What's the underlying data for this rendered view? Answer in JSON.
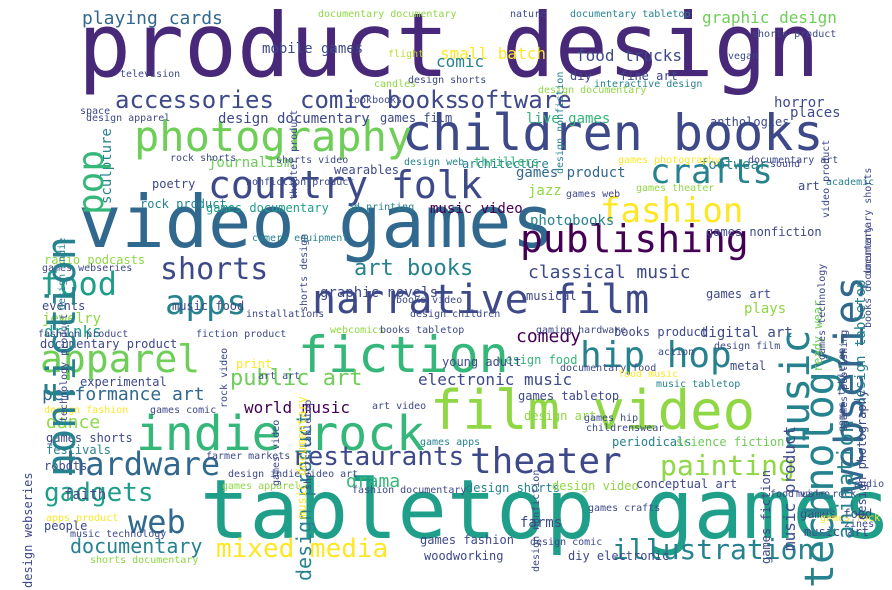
{
  "colors": {
    "background": "#ffffff",
    "palette": [
      "#440154",
      "#482878",
      "#3e4989",
      "#31688e",
      "#26828e",
      "#1f9e89",
      "#35b779",
      "#6ece58",
      "#b5de2b",
      "#fde725"
    ]
  },
  "words": [
    {
      "text": "product design",
      "c": "#482878"
    },
    {
      "text": "video games",
      "c": "#31688e"
    },
    {
      "text": "tabletop games",
      "c": "#1f9e89"
    },
    {
      "text": "film video",
      "c": "#8fd744"
    },
    {
      "text": "children books",
      "c": "#3e4989"
    },
    {
      "text": "narrative film",
      "c": "#3e4989"
    },
    {
      "text": "country folk",
      "c": "#3e4989"
    },
    {
      "text": "publishing",
      "c": "#440154"
    },
    {
      "text": "fiction",
      "c": "#35b779"
    },
    {
      "text": "indie rock",
      "c": "#35b779"
    },
    {
      "text": "photography",
      "c": "#6ece58"
    },
    {
      "text": "accessories",
      "c": "#3e4989"
    },
    {
      "text": "comic books",
      "c": "#3e4989"
    },
    {
      "text": "software",
      "c": "#3e4989"
    },
    {
      "text": "fashion",
      "c": "#fde725"
    },
    {
      "text": "crafts",
      "c": "#26828e"
    },
    {
      "text": "apps",
      "c": "#26828e"
    },
    {
      "text": "shorts",
      "c": "#3e4989"
    },
    {
      "text": "food",
      "c": "#1f9e89"
    },
    {
      "text": "apparel",
      "c": "#6ece58"
    },
    {
      "text": "hip hop",
      "c": "#26828e"
    },
    {
      "text": "theater",
      "c": "#3e4989"
    },
    {
      "text": "hardware",
      "c": "#31688e"
    },
    {
      "text": "restaurants",
      "c": "#3e4989"
    },
    {
      "text": "painting",
      "c": "#8fd744"
    },
    {
      "text": "gadgets",
      "c": "#1f9e89"
    },
    {
      "text": "web",
      "c": "#31688e"
    },
    {
      "text": "mixed media",
      "c": "#fde725"
    },
    {
      "text": "illustration",
      "c": "#26828e"
    },
    {
      "text": "art books",
      "c": "#26828e"
    },
    {
      "text": "classical music",
      "c": "#3e4989"
    },
    {
      "text": "public art",
      "c": "#6ece58"
    },
    {
      "text": "electronic music",
      "c": "#3e4989"
    },
    {
      "text": "performance art",
      "c": "#31688e"
    },
    {
      "text": "world music",
      "c": "#440154"
    },
    {
      "text": "documentary",
      "c": "#26828e"
    },
    {
      "text": "playing cards",
      "c": "#31688e"
    },
    {
      "text": "mobile games",
      "c": "#3e4989"
    },
    {
      "text": "small batch",
      "c": "#fde725"
    },
    {
      "text": "food trucks",
      "c": "#3e4989"
    },
    {
      "text": "graphic design",
      "c": "#6ece58"
    },
    {
      "text": "comic",
      "c": "#26828e"
    },
    {
      "text": "design documentary",
      "c": "#3e4989"
    },
    {
      "text": "live games",
      "c": "#35b779"
    },
    {
      "text": "games film",
      "c": "#3e4989"
    },
    {
      "text": "anthologies",
      "c": "#3e4989"
    },
    {
      "text": "journalism",
      "c": "#6ece58"
    },
    {
      "text": "poetry",
      "c": "#3e4989"
    },
    {
      "text": "wearables",
      "c": "#3e4989"
    },
    {
      "text": "rock product",
      "c": "#26828e"
    },
    {
      "text": "games documentary",
      "c": "#1f9e89"
    },
    {
      "text": "games product",
      "c": "#31688e"
    },
    {
      "text": "jazz",
      "c": "#8fd744"
    },
    {
      "text": "photobooks",
      "c": "#26828e"
    },
    {
      "text": "music video",
      "c": "#440154"
    },
    {
      "text": "3d printing",
      "c": "#26828e"
    },
    {
      "text": "graphic novels",
      "c": "#3e4989"
    },
    {
      "text": "drinks",
      "c": "#1f9e89"
    },
    {
      "text": "dance",
      "c": "#8fd744"
    },
    {
      "text": "comedy",
      "c": "#440154"
    },
    {
      "text": "drama",
      "c": "#35b779"
    },
    {
      "text": "design shorts",
      "c": "#26828e"
    },
    {
      "text": "design video",
      "c": "#8fd744"
    },
    {
      "text": "conceptual art",
      "c": "#3e4989"
    },
    {
      "text": "periodicals",
      "c": "#26828e"
    },
    {
      "text": "science fiction",
      "c": "#6ece58"
    },
    {
      "text": "games tabletop",
      "c": "#3e4989"
    },
    {
      "text": "design art",
      "c": "#8fd744"
    },
    {
      "text": "games apps",
      "c": "#26828e"
    },
    {
      "text": "games fashion",
      "c": "#3e4989"
    },
    {
      "text": "woodworking",
      "c": "#3e4989"
    },
    {
      "text": "farms",
      "c": "#3e4989"
    },
    {
      "text": "diy electronic",
      "c": "#3e4989"
    },
    {
      "text": "design food",
      "c": "#35b779"
    },
    {
      "text": "young adult",
      "c": "#3e4989"
    },
    {
      "text": "digital art",
      "c": "#3e4989"
    },
    {
      "text": "books product",
      "c": "#3e4989"
    },
    {
      "text": "plays",
      "c": "#8fd744"
    },
    {
      "text": "games art",
      "c": "#3e4989"
    },
    {
      "text": "metal",
      "c": "#3e4989"
    },
    {
      "text": "festivals",
      "c": "#26828e"
    },
    {
      "text": "games shorts",
      "c": "#3e4989"
    },
    {
      "text": "robots",
      "c": "#3e4989"
    },
    {
      "text": "experimental",
      "c": "#3e4989"
    },
    {
      "text": "documentary product",
      "c": "#3e4989"
    },
    {
      "text": "jewelry",
      "c": "#8fd744"
    },
    {
      "text": "events",
      "c": "#3e4989"
    },
    {
      "text": "music food",
      "c": "#3e4989"
    },
    {
      "text": "print",
      "c": "#fde725"
    },
    {
      "text": "faith",
      "c": "#3e4989"
    },
    {
      "text": "people",
      "c": "#3e4989"
    },
    {
      "text": "radio podcasts",
      "c": "#8fd744"
    },
    {
      "text": "space",
      "c": "#3e4989"
    },
    {
      "text": "design apparel",
      "c": "#3e4989"
    },
    {
      "text": "horror",
      "c": "#3e4989"
    },
    {
      "text": "places",
      "c": "#3e4989"
    },
    {
      "text": "architecture",
      "c": "#26828e"
    },
    {
      "text": "thrillers",
      "c": "#35b779"
    },
    {
      "text": "footwear",
      "c": "#26828e"
    },
    {
      "text": "sound",
      "c": "#3e4989"
    },
    {
      "text": "art",
      "c": "#3e4989"
    },
    {
      "text": "academic",
      "c": "#26828e"
    },
    {
      "text": "games nonfiction",
      "c": "#3e4989"
    },
    {
      "text": "games food",
      "c": "#3e4989"
    },
    {
      "text": "music art",
      "c": "#3e4989"
    },
    {
      "text": "fine art",
      "c": "#3e4989"
    },
    {
      "text": "diy",
      "c": "#3e4989"
    },
    {
      "text": "vegan",
      "c": "#3e4989"
    },
    {
      "text": "television",
      "c": "#3e4989"
    },
    {
      "text": "cookbooks",
      "c": "#3e4989"
    },
    {
      "text": "candles",
      "c": "#8fd744"
    },
    {
      "text": "nature",
      "c": "#3e4989"
    },
    {
      "text": "flight",
      "c": "#b5de2b"
    },
    {
      "text": "sculpture",
      "c": "#26828e"
    },
    {
      "text": "musical",
      "c": "#3e4989"
    },
    {
      "text": "action",
      "c": "#3e4989"
    },
    {
      "text": "childrenswear",
      "c": "#3e4989"
    },
    {
      "text": "documentary documentary",
      "c": "#8fd744"
    },
    {
      "text": "documentary tabletop",
      "c": "#26828e"
    },
    {
      "text": "design documentary",
      "c": "#8fd744"
    },
    {
      "text": "shorts product",
      "c": "#3e4989"
    },
    {
      "text": "design shorts",
      "c": "#3e4989"
    },
    {
      "text": "interactive design",
      "c": "#26828e"
    },
    {
      "text": "games photography",
      "c": "#fde725"
    },
    {
      "text": "documentary art",
      "c": "#3e4989"
    },
    {
      "text": "games theater",
      "c": "#8fd744"
    },
    {
      "text": "games web",
      "c": "#3e4989"
    },
    {
      "text": "design nonfiction",
      "c": "#26828e"
    },
    {
      "text": "design web",
      "c": "#26828e"
    },
    {
      "text": "rock shorts",
      "c": "#3e4989"
    },
    {
      "text": "shorts video",
      "c": "#3e4989"
    },
    {
      "text": "nonfiction product",
      "c": "#3e4989"
    },
    {
      "text": "camera equipment",
      "c": "#26828e"
    },
    {
      "text": "games webseries",
      "c": "#3e4989"
    },
    {
      "text": "books video",
      "c": "#3e4989"
    },
    {
      "text": "design children",
      "c": "#3e4989"
    },
    {
      "text": "installations",
      "c": "#3e4989"
    },
    {
      "text": "fashion product",
      "c": "#3e4989"
    },
    {
      "text": "fiction product",
      "c": "#3e4989"
    },
    {
      "text": "webcomics",
      "c": "#8fd744"
    },
    {
      "text": "books tabletop",
      "c": "#3e4989"
    },
    {
      "text": "gaming hardware",
      "c": "#3e4989"
    },
    {
      "text": "documentary food",
      "c": "#3e4989"
    },
    {
      "text": "music tabletop",
      "c": "#26828e"
    },
    {
      "text": "design film",
      "c": "#3e4989"
    },
    {
      "text": "art art",
      "c": "#3e4989"
    },
    {
      "text": "design fashion",
      "c": "#fde725"
    },
    {
      "text": "games comic",
      "c": "#3e4989"
    },
    {
      "text": "art video",
      "c": "#3e4989"
    },
    {
      "text": "games hip",
      "c": "#3e4989"
    },
    {
      "text": "farmer markets",
      "c": "#3e4989"
    },
    {
      "text": "design indie",
      "c": "#3e4989"
    },
    {
      "text": "video art",
      "c": "#3e4989"
    },
    {
      "text": "games apparel",
      "c": "#8fd744"
    },
    {
      "text": "fashion documentary",
      "c": "#3e4989"
    },
    {
      "text": "games crafts",
      "c": "#3e4989"
    },
    {
      "text": "apps product",
      "c": "#fde725"
    },
    {
      "text": "music technology",
      "c": "#3e4989"
    },
    {
      "text": "shorts documentary",
      "c": "#8fd744"
    },
    {
      "text": "design comic",
      "c": "#3e4989"
    },
    {
      "text": "food video",
      "c": "#3e4989"
    },
    {
      "text": "games rock",
      "c": "#fde725"
    },
    {
      "text": "zines",
      "c": "#3e4989"
    },
    {
      "text": "music rock",
      "c": "#3e4989"
    },
    {
      "text": "audio",
      "c": "#3e4989"
    },
    {
      "text": "food music",
      "c": "#fde725"
    },
    {
      "text": "nonfiction",
      "c": "#26828e"
    },
    {
      "text": "pop",
      "c": "#35b779"
    },
    {
      "text": "webseries",
      "c": "#31688e"
    },
    {
      "text": "music",
      "c": "#26828e"
    },
    {
      "text": "technology",
      "c": "#26828e"
    },
    {
      "text": "animation",
      "c": "#26828e"
    },
    {
      "text": "design tabletop",
      "c": "#26828e"
    },
    {
      "text": "design product",
      "c": "#26828e"
    },
    {
      "text": "music product",
      "c": "#3e4989"
    },
    {
      "text": "ready wear",
      "c": "#6ece58"
    },
    {
      "text": "games fiction",
      "c": "#3e4989"
    },
    {
      "text": "design photography",
      "c": "#3e4989"
    },
    {
      "text": "design webseries",
      "c": "#3e4989"
    },
    {
      "text": "games video",
      "c": "#3e4989"
    },
    {
      "text": "music documentary",
      "c": "#fde725"
    },
    {
      "text": "games tabletop",
      "c": "#3e4989"
    },
    {
      "text": "technology product",
      "c": "#3e4989"
    },
    {
      "text": "rock video",
      "c": "#3e4989"
    },
    {
      "text": "video product",
      "c": "#3e4989"
    },
    {
      "text": "theater product",
      "c": "#3e4989"
    },
    {
      "text": "games technology",
      "c": "#3e4989"
    },
    {
      "text": "games publishing",
      "c": "#3e4989"
    },
    {
      "text": "shorts tabletop",
      "c": "#3e4989"
    },
    {
      "text": "shorts design",
      "c": "#3e4989"
    },
    {
      "text": "design nonfiction",
      "c": "#3e4989"
    },
    {
      "text": "design indie",
      "c": "#26828e"
    },
    {
      "text": "books documentary",
      "c": "#3e4989"
    },
    {
      "text": "documentary shorts",
      "c": "#3e4989"
    }
  ]
}
